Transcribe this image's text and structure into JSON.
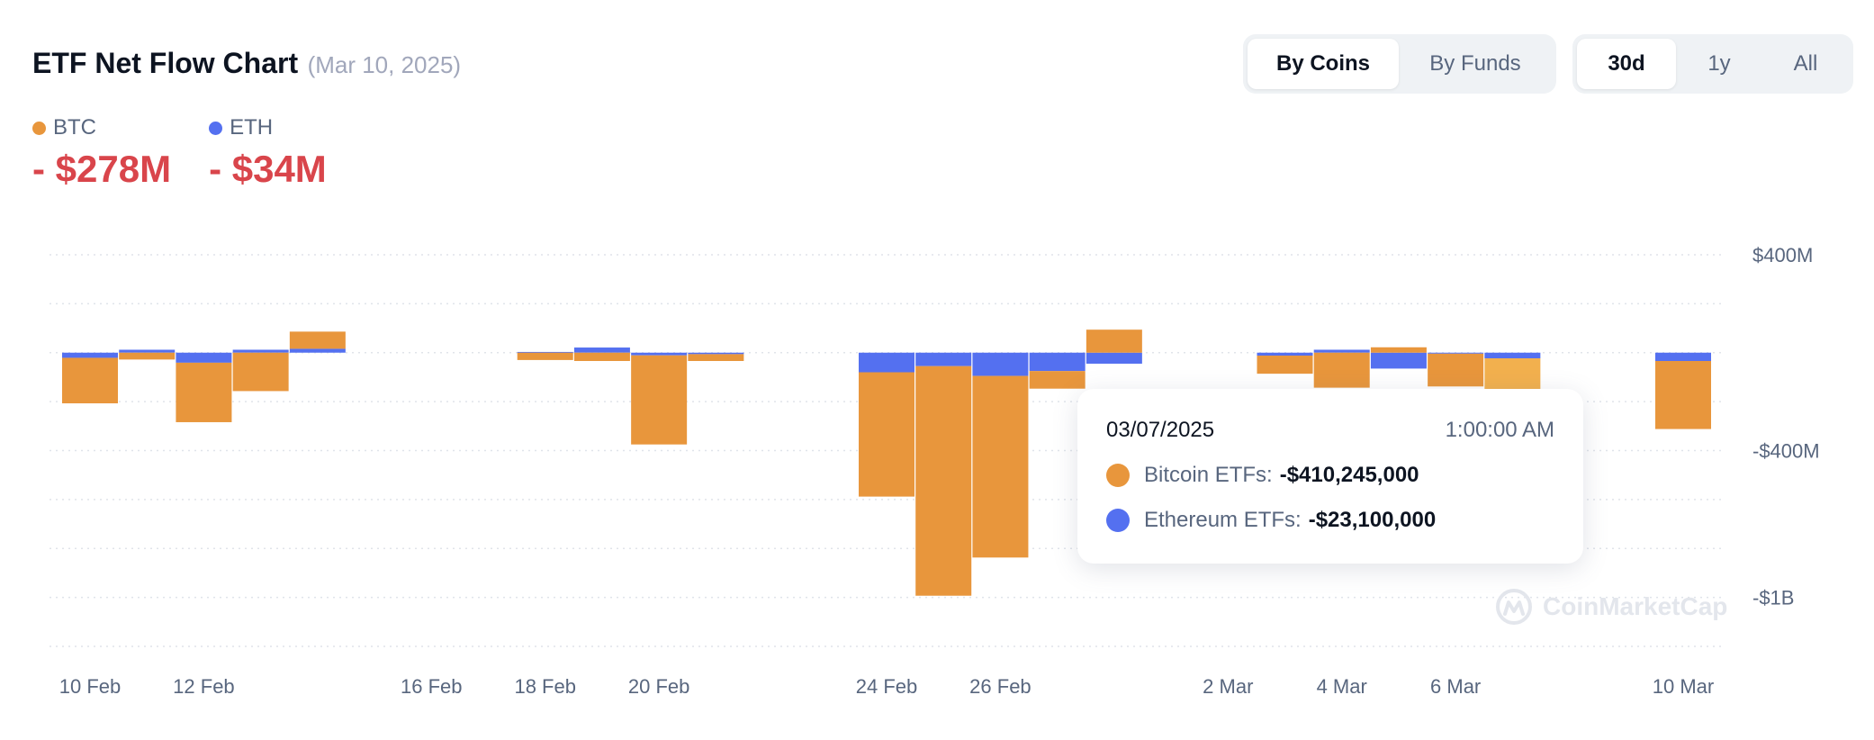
{
  "header": {
    "title": "ETF Net Flow Chart",
    "subtitle": "(Mar 10, 2025)"
  },
  "legend": {
    "items": [
      {
        "name": "BTC",
        "value": "- $278M",
        "color": "#e8963c"
      },
      {
        "name": "ETH",
        "value": "- $34M",
        "color": "#5470f0"
      }
    ]
  },
  "view_toggle": {
    "options": [
      "By Coins",
      "By Funds"
    ],
    "selected": "By Coins"
  },
  "range_toggle": {
    "options": [
      "30d",
      "1y",
      "All"
    ],
    "selected": "30d"
  },
  "watermark": {
    "text": "CoinMarketCap"
  },
  "tooltip": {
    "date": "03/07/2025",
    "time": "1:00:00 AM",
    "rows": [
      {
        "label": "Bitcoin ETFs:",
        "value": "-$410,245,000",
        "color": "#e8963c"
      },
      {
        "label": "Ethereum ETFs:",
        "value": "-$23,100,000",
        "color": "#5470f0"
      }
    ]
  },
  "chart_data": {
    "type": "bar",
    "stacked": true,
    "categories": [
      "10 Feb",
      "11 Feb",
      "12 Feb",
      "13 Feb",
      "14 Feb",
      "18 Feb",
      "19 Feb",
      "20 Feb",
      "21 Feb",
      "24 Feb",
      "25 Feb",
      "26 Feb",
      "27 Feb",
      "28 Feb",
      "3 Mar",
      "4 Mar",
      "5 Mar",
      "6 Mar",
      "7 Mar",
      "10 Mar"
    ],
    "x_tick_labels": [
      "10 Feb",
      "12 Feb",
      "16 Feb",
      "18 Feb",
      "20 Feb",
      "24 Feb",
      "26 Feb",
      "2 Mar",
      "4 Mar",
      "6 Mar",
      "10 Mar"
    ],
    "series": [
      {
        "name": "BTC",
        "color": "#e8963c",
        "highlight_color": "#f2b04e",
        "values": [
          -186,
          -28,
          -243,
          -157,
          70,
          -30,
          -34,
          -364,
          -28,
          -508,
          -938,
          -742,
          -72,
          94,
          -74,
          -143,
          22,
          -134,
          -410,
          -278
        ]
      },
      {
        "name": "ETH",
        "color": "#5470f0",
        "values": [
          -21,
          12,
          -41,
          12,
          16,
          3,
          21,
          -11,
          -6,
          -80,
          -55,
          -95,
          -75,
          -45,
          -12,
          12,
          -65,
          -4,
          -23,
          -34
        ]
      }
    ],
    "highlighted_category": "7 Mar",
    "y_tick_labels": [
      "$400M",
      "-$400M",
      "-$1B"
    ],
    "ylim": [
      -1200,
      400
    ],
    "grid": true,
    "legend": "top-left"
  }
}
